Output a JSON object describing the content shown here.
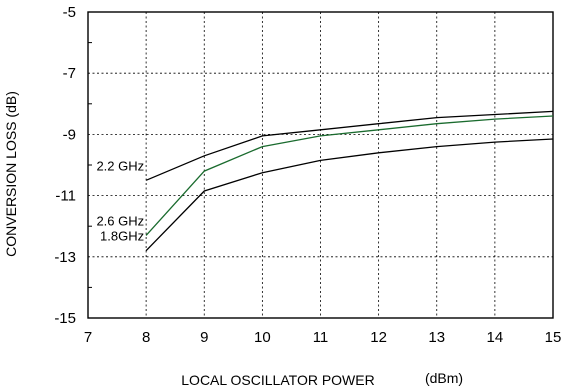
{
  "chart_data": {
    "type": "line",
    "xlabel": "LOCAL OSCILLATOR POWER",
    "xlabel_unit": "(dBm)",
    "ylabel": "CONVERSION LOSS (dB)",
    "xlim": [
      7,
      15
    ],
    "ylim": [
      -15,
      -5
    ],
    "x_ticks": [
      7,
      8,
      9,
      10,
      11,
      12,
      13,
      14,
      15
    ],
    "y_ticks": [
      -5,
      -7,
      -9,
      -11,
      -13,
      -15
    ],
    "grid": true,
    "legend": "none",
    "series": [
      {
        "name": "2.2 GHz",
        "color": "#000000",
        "x": [
          8,
          9,
          10,
          11,
          12,
          13,
          14,
          15
        ],
        "y": [
          -10.5,
          -9.7,
          -9.05,
          -8.85,
          -8.65,
          -8.45,
          -8.35,
          -8.25
        ]
      },
      {
        "name": "2.6 GHz",
        "color": "#1a6b2e",
        "x": [
          8,
          9,
          10,
          11,
          12,
          13,
          14,
          15
        ],
        "y": [
          -12.3,
          -10.2,
          -9.4,
          -9.05,
          -8.85,
          -8.65,
          -8.5,
          -8.4
        ]
      },
      {
        "name": "1.8GHz",
        "color": "#000000",
        "x": [
          8,
          9,
          10,
          11,
          12,
          13,
          14,
          15
        ],
        "y": [
          -12.8,
          -10.85,
          -10.25,
          -9.85,
          -9.6,
          -9.4,
          -9.25,
          -9.15
        ]
      }
    ]
  }
}
